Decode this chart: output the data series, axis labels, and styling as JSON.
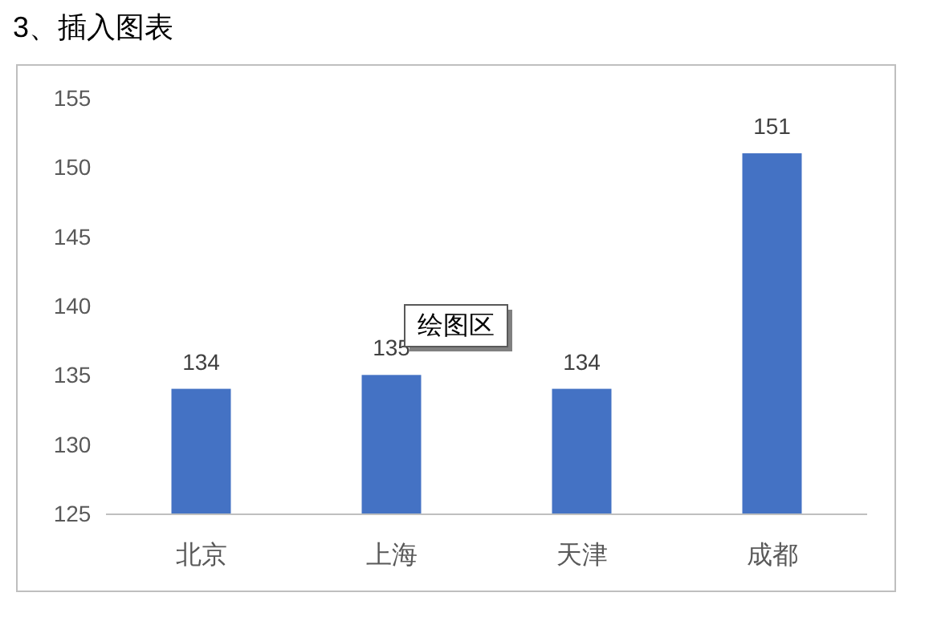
{
  "chart_data": {
    "type": "bar",
    "title": "3、插入图表",
    "categories": [
      "北京",
      "上海",
      "天津",
      "成都"
    ],
    "values": [
      134,
      135,
      134,
      151
    ],
    "color": "#4472c4",
    "ylim": [
      125,
      155
    ],
    "yticks": [
      125,
      130,
      135,
      140,
      145,
      150,
      155
    ],
    "data_labels": true,
    "annotations": [
      "绘图区"
    ]
  }
}
